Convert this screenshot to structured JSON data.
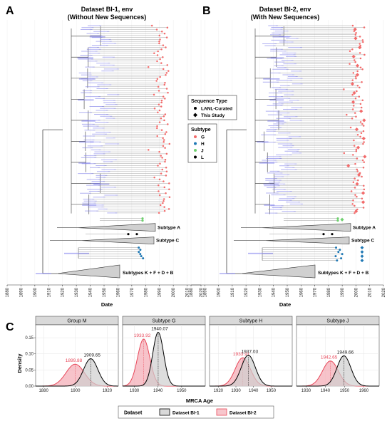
{
  "panelA": {
    "letter": "A",
    "title_line1": "Dataset BI-1, env",
    "title_line2": "(Without New Sequences)",
    "xlabel": "Date",
    "ticks": [
      "1880",
      "1890",
      "1900",
      "1910",
      "1920",
      "1930",
      "1940",
      "1950",
      "1960",
      "1970",
      "1980",
      "1990",
      "2000",
      "2010",
      "2020"
    ],
    "clades": [
      "Subtype A",
      "Subtype C",
      "Subtypes K + F + D + B"
    ]
  },
  "panelB": {
    "letter": "B",
    "title_line1": "Dataset BI-2, env",
    "title_line2": "(With New Sequences)",
    "xlabel": "Date",
    "ticks": [
      "1880",
      "1890",
      "1900",
      "1910",
      "1920",
      "1930",
      "1940",
      "1950",
      "1960",
      "1970",
      "1980",
      "1990",
      "2000",
      "2010",
      "2020"
    ],
    "clades": [
      "Subtype A",
      "Subtype C",
      "Subtypes K + F + D + B"
    ]
  },
  "legend": {
    "seq_title": "Sequence Type",
    "seq_items": [
      "LANL-Curated",
      "This Study"
    ],
    "subtype_title": "Subtype",
    "subtype_items": [
      {
        "label": "G",
        "color": "#f26a6a"
      },
      {
        "label": "H",
        "color": "#1f78b4"
      },
      {
        "label": "J",
        "color": "#6fd06f"
      },
      {
        "label": "L",
        "color": "#000000"
      }
    ]
  },
  "panelC": {
    "letter": "C",
    "xlabel": "MRCA Age",
    "ylabel": "Density",
    "legend_title": "Dataset",
    "series_names": [
      "Dataset BI-1",
      "Dataset BI-2"
    ],
    "series_colors": [
      "#000000",
      "#e8485a"
    ]
  },
  "chart_data": [
    {
      "type": "area",
      "title": "Group M",
      "xlabel": "MRCA Age",
      "ylabel": "Density",
      "xlim": [
        1875,
        1927
      ],
      "ylim": [
        0,
        0.19
      ],
      "xticks": [
        1880,
        1900,
        1920
      ],
      "yticks": [
        0.0,
        0.05,
        0.1,
        0.15
      ],
      "series": [
        {
          "name": "Dataset BI-1",
          "peak_x": 1909.65,
          "peak_y": 0.085,
          "sd": 4.5,
          "peak_label": "1909.65"
        },
        {
          "name": "Dataset BI-2",
          "peak_x": 1899.88,
          "peak_y": 0.068,
          "sd": 5.8,
          "peak_label": "1899.88"
        }
      ]
    },
    {
      "type": "area",
      "title": "Subtype G",
      "xlabel": "MRCA Age",
      "ylabel": "Density",
      "xlim": [
        1925,
        1960
      ],
      "ylim": [
        0,
        0.19
      ],
      "xticks": [
        1930,
        1940,
        1950
      ],
      "yticks": [
        0.0,
        0.05,
        0.1,
        0.15
      ],
      "series": [
        {
          "name": "Dataset BI-1",
          "peak_x": 1940.07,
          "peak_y": 0.167,
          "sd": 2.3,
          "peak_label": "1940.07"
        },
        {
          "name": "Dataset BI-2",
          "peak_x": 1933.92,
          "peak_y": 0.146,
          "sd": 2.6,
          "peak_label": "1933.92"
        }
      ]
    },
    {
      "type": "area",
      "title": "Subtype H",
      "xlabel": "MRCA Age",
      "ylabel": "Density",
      "xlim": [
        1915,
        1962
      ],
      "ylim": [
        0,
        0.19
      ],
      "xticks": [
        1920,
        1930,
        1940,
        1950
      ],
      "yticks": [
        0.0,
        0.05,
        0.1,
        0.15
      ],
      "series": [
        {
          "name": "Dataset BI-1",
          "peak_x": 1937.03,
          "peak_y": 0.096,
          "sd": 4.0,
          "peak_label": "1937.03"
        },
        {
          "name": "Dataset BI-2",
          "peak_x": 1933.91,
          "peak_y": 0.088,
          "sd": 4.3,
          "peak_label": "1933.91"
        }
      ]
    },
    {
      "type": "area",
      "title": "Subtype J",
      "xlabel": "MRCA Age",
      "ylabel": "Density",
      "xlim": [
        1925,
        1968
      ],
      "ylim": [
        0,
        0.19
      ],
      "xticks": [
        1930,
        1940,
        1950,
        1960
      ],
      "yticks": [
        0.0,
        0.05,
        0.1,
        0.15
      ],
      "series": [
        {
          "name": "Dataset BI-1",
          "peak_x": 1949.66,
          "peak_y": 0.094,
          "sd": 3.6,
          "peak_label": "1949.66"
        },
        {
          "name": "Dataset BI-2",
          "peak_x": 1942.65,
          "peak_y": 0.078,
          "sd": 4.1,
          "peak_label": "1942.65"
        }
      ]
    }
  ]
}
